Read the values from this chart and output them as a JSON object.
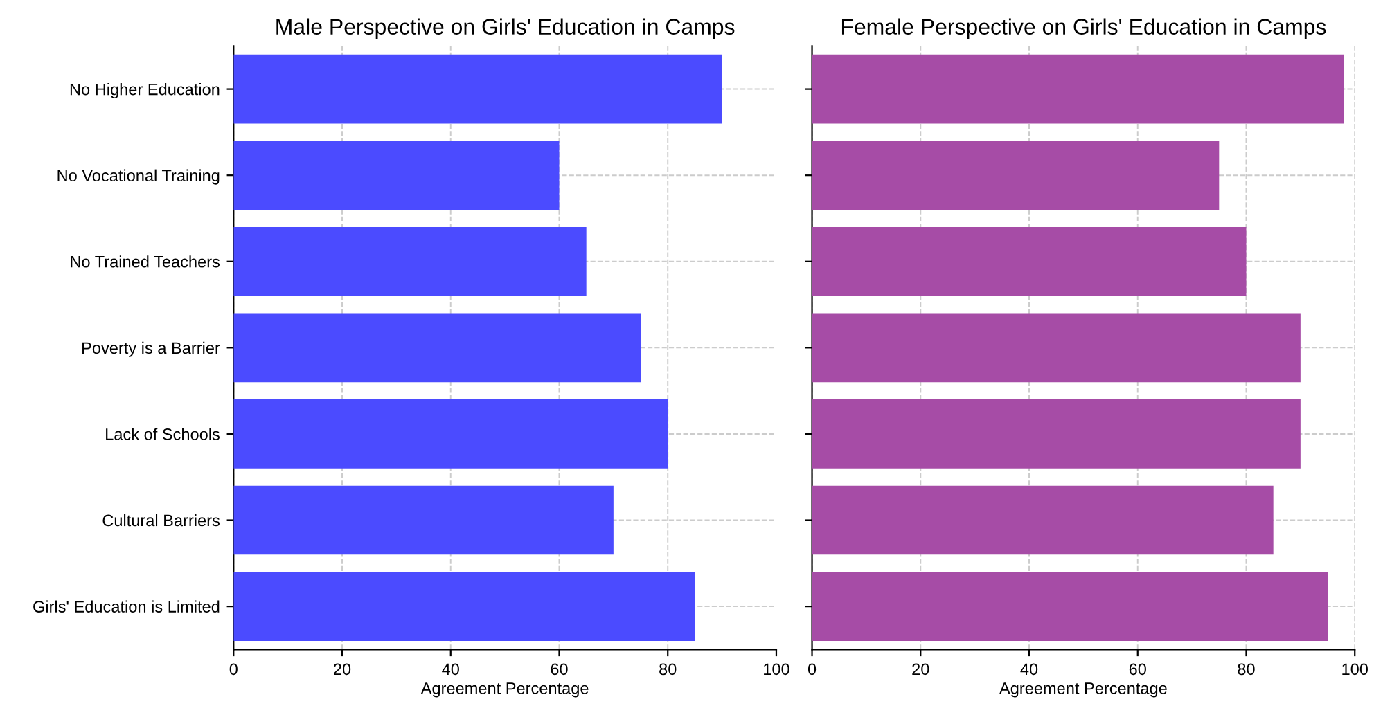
{
  "chart_data": [
    {
      "type": "bar",
      "orientation": "horizontal",
      "title": "Male Perspective on Girls' Education in Camps",
      "xlabel": "Agreement Percentage",
      "categories": [
        "No Higher Education",
        "No Vocational Training",
        "No Trained Teachers",
        "Poverty is a Barrier",
        "Lack of Schools",
        "Cultural Barriers",
        "Girls' Education is Limited"
      ],
      "values": [
        90,
        60,
        65,
        75,
        80,
        70,
        85
      ],
      "color": "#4b4bff",
      "xlim": [
        0,
        100
      ],
      "xticks": [
        0,
        20,
        40,
        60,
        80,
        100
      ],
      "grid": true
    },
    {
      "type": "bar",
      "orientation": "horizontal",
      "title": "Female Perspective on Girls' Education in Camps",
      "xlabel": "Agreement Percentage",
      "categories": [
        null,
        null,
        null,
        null,
        null,
        null,
        null
      ],
      "values": [
        98,
        75,
        80,
        90,
        90,
        85,
        95
      ],
      "color": "#a64ca6",
      "xlim": [
        0,
        100
      ],
      "xticks": [
        0,
        20,
        40,
        60,
        80,
        100
      ],
      "grid": true,
      "tick_labels": "x"
    }
  ]
}
